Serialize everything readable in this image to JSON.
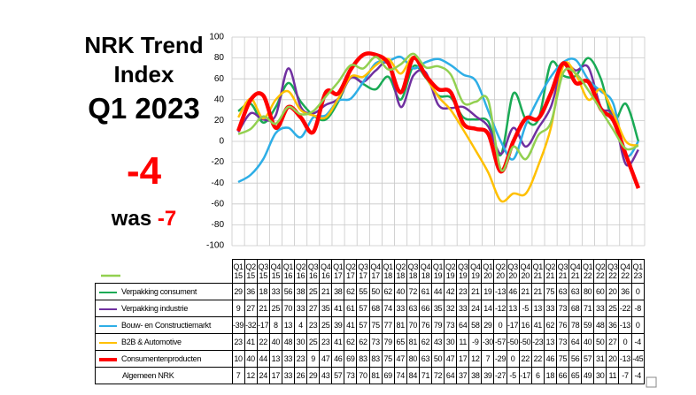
{
  "headline": {
    "title_line1": "NRK Trend",
    "title_line2": "Index",
    "period": "Q1 2023",
    "current": "-4",
    "was_label": "was",
    "previous": "-7"
  },
  "chart_data": {
    "type": "line",
    "categories": [
      "Q1 15",
      "Q2 15",
      "Q3 15",
      "Q4 15",
      "Q1 16",
      "Q2 16",
      "Q3 16",
      "Q4 16",
      "Q1 17",
      "Q2 17",
      "Q3 17",
      "Q4 17",
      "Q1 18",
      "Q2 18",
      "Q3 18",
      "Q4 18",
      "Q1 19",
      "Q2 19",
      "Q3 19",
      "Q4 19",
      "Q1 20",
      "Q2 20",
      "Q3 20",
      "Q4 20",
      "Q1 21",
      "Q2 21",
      "Q3 21",
      "Q4 21",
      "Q1 22",
      "Q2 22",
      "Q3 22",
      "Q4 22",
      "Q1 23"
    ],
    "ylim": [
      -100,
      100
    ],
    "yticks": [
      100,
      80,
      60,
      40,
      20,
      0,
      -20,
      -40,
      -60,
      -80,
      -100
    ],
    "grid": true,
    "series": [
      {
        "name": "Verpakking consument",
        "color": "#1aaa55",
        "width": 2.5,
        "values": [
          29,
          36,
          18,
          33,
          56,
          38,
          25,
          21,
          38,
          62,
          55,
          50,
          62,
          40,
          72,
          61,
          44,
          42,
          23,
          21,
          19,
          -13,
          46,
          21,
          21,
          75,
          63,
          63,
          80,
          60,
          20,
          36,
          0
        ]
      },
      {
        "name": "Verpakking industrie",
        "color": "#7030a0",
        "width": 2.5,
        "values": [
          9,
          27,
          21,
          25,
          70,
          33,
          27,
          35,
          41,
          61,
          57,
          68,
          74,
          33,
          63,
          66,
          35,
          32,
          33,
          24,
          14,
          -12,
          13,
          -5,
          13,
          33,
          73,
          68,
          71,
          33,
          25,
          -22,
          -8
        ]
      },
      {
        "name": "Bouw- en Constructiemarkt",
        "color": "#2eaee6",
        "width": 2.5,
        "values": [
          -39,
          -32,
          -17,
          8,
          13,
          4,
          23,
          25,
          39,
          41,
          57,
          75,
          77,
          81,
          70,
          76,
          79,
          73,
          64,
          58,
          29,
          0,
          -17,
          16,
          41,
          62,
          76,
          78,
          59,
          48,
          36,
          -13,
          0
        ]
      },
      {
        "name": "B2B & Automotive",
        "color": "#ffc000",
        "width": 2.5,
        "values": [
          23,
          41,
          22,
          40,
          48,
          30,
          25,
          23,
          41,
          62,
          62,
          73,
          79,
          65,
          81,
          62,
          43,
          30,
          11,
          -9,
          -30,
          -57,
          -50,
          -50,
          -23,
          13,
          73,
          64,
          40,
          50,
          27,
          0,
          -4
        ]
      },
      {
        "name": "Consumentenproducten",
        "color": "#ff0000",
        "width": 4.5,
        "values": [
          10,
          40,
          44,
          13,
          33,
          23,
          9,
          47,
          46,
          69,
          83,
          83,
          75,
          47,
          80,
          63,
          50,
          47,
          17,
          12,
          7,
          -29,
          0,
          22,
          22,
          46,
          75,
          56,
          57,
          31,
          20,
          -13,
          -45
        ]
      },
      {
        "name": "Algemeen NRK",
        "color": "#92d050",
        "width": 2.5,
        "detached_marker": true,
        "values": [
          7,
          12,
          24,
          17,
          33,
          26,
          29,
          43,
          57,
          73,
          70,
          81,
          69,
          74,
          84,
          71,
          72,
          64,
          37,
          38,
          39,
          -27,
          -5,
          -17,
          6,
          18,
          66,
          65,
          49,
          30,
          11,
          -7,
          -4
        ]
      }
    ]
  }
}
